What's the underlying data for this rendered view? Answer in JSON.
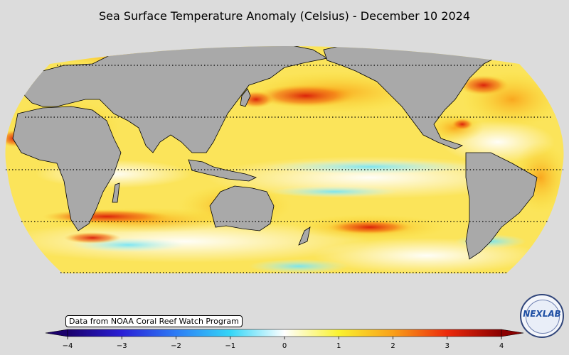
{
  "title": "Sea Surface Temperature Anomaly (Celsius) - December 10 2024",
  "credit": "Data from NOAA Coral Reef Watch Program",
  "logo_text": "NEXLAB",
  "colorbar": {
    "ticks": [
      "−4",
      "−3",
      "−2",
      "−1",
      "0",
      "1",
      "2",
      "3",
      "4"
    ],
    "range": [
      -4,
      4
    ],
    "colors": [
      "#1a006b",
      "#2a1fd6",
      "#2d7cf5",
      "#34d6f7",
      "#ffffff",
      "#f9f230",
      "#f9a019",
      "#ec2a0c",
      "#8a0000"
    ]
  },
  "map": {
    "projection": "robinson",
    "land_color": "#a9a9a9",
    "ocean_base_color": "#fff8d0",
    "parallels_dotted": true
  }
}
